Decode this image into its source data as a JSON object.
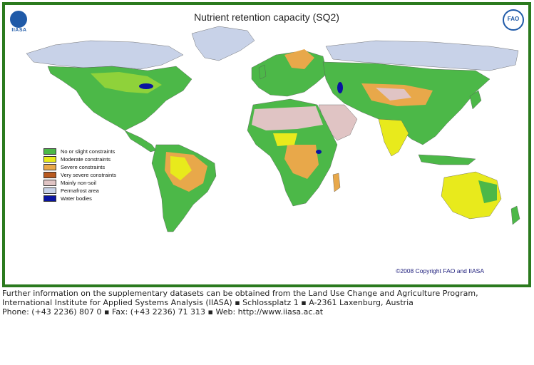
{
  "map": {
    "title": "Nutrient retention capacity (SQ2)",
    "copyright": "©2008 Copyright FAO and IIASA",
    "logos": {
      "left_text": "IIASA",
      "right_text": "FAO"
    },
    "legend": [
      {
        "label": "No or slight constraints",
        "color": "#4cb848"
      },
      {
        "label": "Moderate constraints",
        "color": "#e8ea1c"
      },
      {
        "label": "Severe constraints",
        "color": "#e8a84a"
      },
      {
        "label": "Very severe constraints",
        "color": "#b85a20"
      },
      {
        "label": "Mainly non-soil",
        "color": "#e0c4c4"
      },
      {
        "label": "Permafrost area",
        "color": "#c8d2e8"
      },
      {
        "label": "Water bodies",
        "color": "#0a14a0"
      }
    ],
    "frame_color": "#2b7a1e"
  },
  "footer": {
    "line1": "Further information on the supplementary datasets can be obtained from the Land Use Change and Agriculture Program,",
    "line2": "International Institute for Applied Systems Analysis (IIASA) ▪ Schlossplatz 1 ▪ A-2361 Laxenburg, Austria",
    "line3": "Phone: (+43 2236) 807 0 ▪ Fax: (+43 2236) 71 313 ▪ Web: http://www.iiasa.ac.at"
  }
}
